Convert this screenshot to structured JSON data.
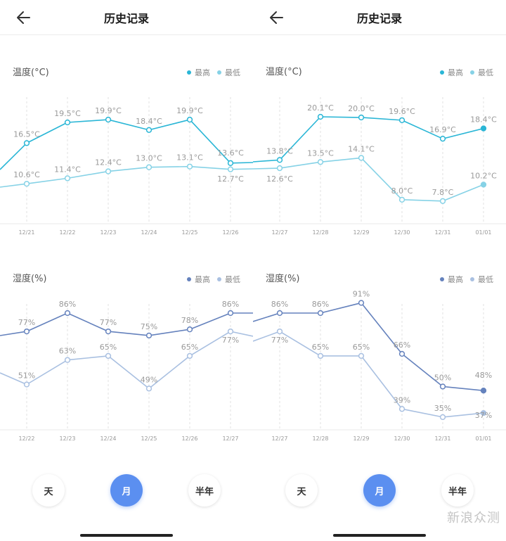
{
  "colors": {
    "temp_high": "#2ab6d6",
    "temp_low": "#86d2e6",
    "hum_high": "#6582bd",
    "hum_low": "#a9c0e1",
    "active_button": "#5b8ff0"
  },
  "icons": {
    "back": "arrow-left-icon"
  },
  "panels": [
    {
      "header": {
        "title": "历史记录"
      },
      "temp": {
        "title": "温度(°C)",
        "legend_high": "最高",
        "legend_low": "最低",
        "chart_data": {
          "type": "line",
          "categories": [
            "12/21",
            "12/22",
            "12/23",
            "12/24",
            "12/25",
            "12/26"
          ],
          "series": [
            {
              "name": "最高",
              "values": [
                16.5,
                19.5,
                19.9,
                18.4,
                19.9,
                13.6
              ],
              "labels": [
                "16.5°C",
                "19.5°C",
                "19.9°C",
                "18.4°C",
                "19.9°C",
                "13.6°C"
              ]
            },
            {
              "name": "最低",
              "values": [
                10.6,
                11.4,
                12.4,
                13.0,
                13.1,
                12.7
              ],
              "labels": [
                "10.6°C",
                "11.4°C",
                "12.4°C",
                "13.0°C",
                "13.1°C",
                "12.7°C"
              ]
            }
          ]
        }
      },
      "hum": {
        "title": "湿度(%)",
        "legend_high": "最高",
        "legend_low": "最低",
        "chart_data": {
          "type": "line",
          "categories": [
            "12/22",
            "12/23",
            "12/24",
            "12/25",
            "12/26",
            "12/27"
          ],
          "series": [
            {
              "name": "最高",
              "values": [
                77,
                86,
                77,
                75,
                78,
                86
              ],
              "labels": [
                "77%",
                "86%",
                "77%",
                "75%",
                "78%",
                "86%"
              ]
            },
            {
              "name": "最低",
              "values": [
                51,
                63,
                65,
                49,
                65,
                77
              ],
              "labels": [
                "51%",
                "63%",
                "65%",
                "49%",
                "65%",
                "77%"
              ]
            }
          ]
        }
      },
      "buttons": [
        "天",
        "月",
        "半年"
      ],
      "active": "月"
    },
    {
      "header": {
        "title": "历史记录"
      },
      "temp": {
        "title": "温度(°C)",
        "legend_high": "最高",
        "legend_low": "最低",
        "chart_data": {
          "type": "line",
          "categories": [
            "12/27",
            "12/28",
            "12/29",
            "12/30",
            "12/31",
            "01/01"
          ],
          "series": [
            {
              "name": "最高",
              "values": [
                13.8,
                20.1,
                20.0,
                19.6,
                16.9,
                18.4
              ],
              "labels": [
                "13.8°C",
                "20.1°C",
                "20.0°C",
                "19.6°C",
                "16.9°C",
                "18.4°C"
              ]
            },
            {
              "name": "最低",
              "values": [
                12.6,
                13.5,
                14.1,
                8.0,
                7.8,
                10.2
              ],
              "labels": [
                "12.6°C",
                "13.5°C",
                "14.1°C",
                "8.0°C",
                "7.8°C",
                "10.2°C"
              ]
            }
          ]
        }
      },
      "hum": {
        "title": "湿度(%)",
        "legend_high": "最高",
        "legend_low": "最低",
        "chart_data": {
          "type": "line",
          "categories": [
            "12/27",
            "12/28",
            "12/29",
            "12/30",
            "12/31",
            "01/01"
          ],
          "series": [
            {
              "name": "最高",
              "values": [
                86,
                86,
                91,
                66,
                50,
                48
              ],
              "labels": [
                "86%",
                "86%",
                "91%",
                "66%",
                "50%",
                "48%"
              ]
            },
            {
              "name": "最低",
              "values": [
                77,
                65,
                65,
                39,
                35,
                37
              ],
              "labels": [
                "77%",
                "65%",
                "65%",
                "39%",
                "35%",
                "37%"
              ]
            }
          ]
        }
      },
      "buttons": [
        "天",
        "月",
        "半年"
      ],
      "active": "月"
    }
  ],
  "watermark": "新浪众测"
}
